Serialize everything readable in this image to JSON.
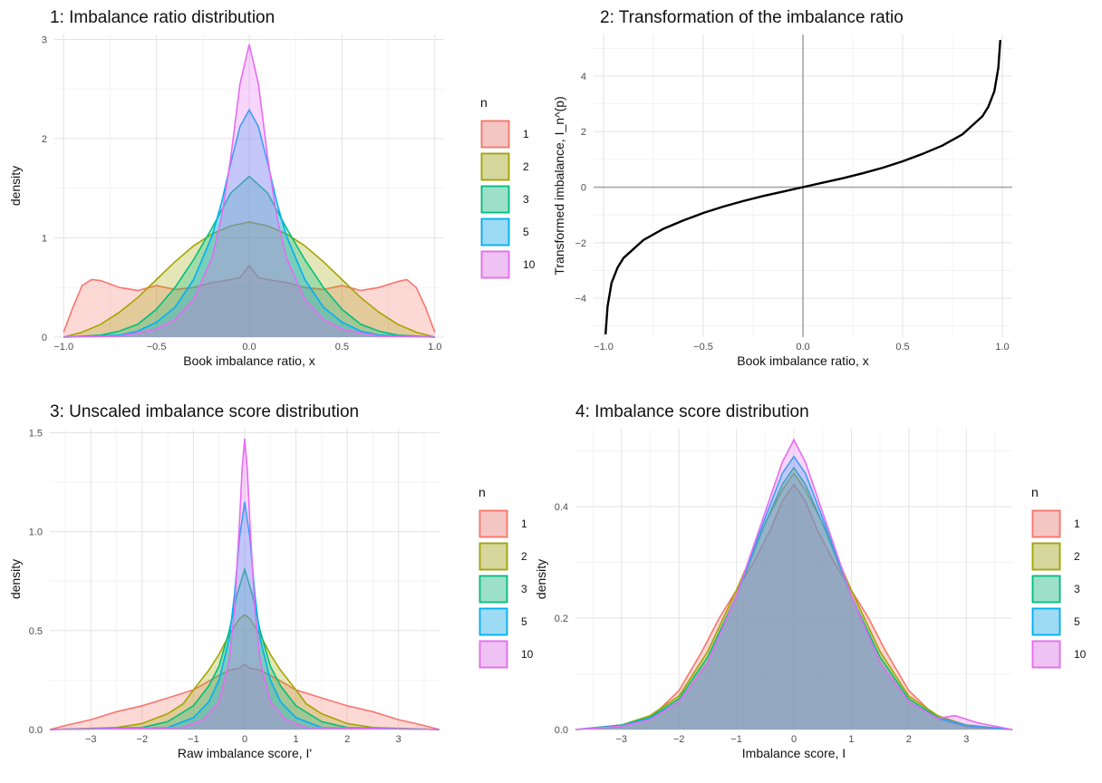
{
  "chart_data": [
    {
      "type": "area",
      "title": "1: Imbalance ratio distribution",
      "xlabel": "Book imbalance ratio, x",
      "ylabel": "density",
      "xlim": [
        -1.05,
        1.05
      ],
      "ylim": [
        0,
        3.05
      ],
      "xticks": [
        -1.0,
        -0.5,
        0.0,
        0.5,
        1.0
      ],
      "xtick_labels": [
        "−1.0",
        "−0.5",
        "0.0",
        "0.5",
        "1.0"
      ],
      "yticks": [
        0,
        1,
        2,
        3
      ],
      "ytick_labels": [
        "0",
        "1",
        "2",
        "3"
      ],
      "grid": true,
      "legend": {
        "title": "n",
        "position": "right",
        "entries": [
          "1",
          "2",
          "3",
          "5",
          "10"
        ]
      },
      "series": [
        {
          "name": "1",
          "color": "#F8766D",
          "x": [
            -1.0,
            -0.95,
            -0.9,
            -0.85,
            -0.8,
            -0.7,
            -0.6,
            -0.5,
            -0.4,
            -0.3,
            -0.2,
            -0.1,
            -0.05,
            0.0,
            0.05,
            0.1,
            0.2,
            0.3,
            0.4,
            0.5,
            0.6,
            0.7,
            0.8,
            0.85,
            0.9,
            0.95,
            1.0
          ],
          "y": [
            0.05,
            0.3,
            0.52,
            0.58,
            0.57,
            0.5,
            0.47,
            0.52,
            0.48,
            0.5,
            0.55,
            0.58,
            0.6,
            0.72,
            0.6,
            0.58,
            0.55,
            0.5,
            0.48,
            0.52,
            0.47,
            0.5,
            0.56,
            0.58,
            0.5,
            0.3,
            0.05
          ]
        },
        {
          "name": "2",
          "color": "#A3A500",
          "x": [
            -1.0,
            -0.9,
            -0.8,
            -0.7,
            -0.6,
            -0.5,
            -0.4,
            -0.3,
            -0.2,
            -0.1,
            0.0,
            0.1,
            0.2,
            0.3,
            0.4,
            0.5,
            0.6,
            0.7,
            0.8,
            0.9,
            1.0
          ],
          "y": [
            0.0,
            0.05,
            0.13,
            0.25,
            0.4,
            0.58,
            0.76,
            0.92,
            1.04,
            1.12,
            1.16,
            1.12,
            1.04,
            0.92,
            0.76,
            0.58,
            0.4,
            0.25,
            0.13,
            0.05,
            0.0
          ]
        },
        {
          "name": "3",
          "color": "#00BF7D",
          "x": [
            -1.0,
            -0.8,
            -0.7,
            -0.6,
            -0.5,
            -0.4,
            -0.3,
            -0.2,
            -0.1,
            0.0,
            0.1,
            0.2,
            0.3,
            0.4,
            0.5,
            0.6,
            0.7,
            0.8,
            1.0
          ],
          "y": [
            0.0,
            0.02,
            0.06,
            0.13,
            0.28,
            0.5,
            0.78,
            1.1,
            1.45,
            1.62,
            1.45,
            1.1,
            0.78,
            0.5,
            0.28,
            0.13,
            0.06,
            0.02,
            0.0
          ]
        },
        {
          "name": "5",
          "color": "#00B0F6",
          "x": [
            -1.0,
            -0.7,
            -0.6,
            -0.5,
            -0.4,
            -0.3,
            -0.2,
            -0.15,
            -0.1,
            -0.05,
            0.0,
            0.05,
            0.1,
            0.15,
            0.2,
            0.3,
            0.4,
            0.5,
            0.6,
            0.7,
            1.0
          ],
          "y": [
            0.0,
            0.02,
            0.06,
            0.15,
            0.3,
            0.58,
            1.02,
            1.35,
            1.75,
            2.12,
            2.29,
            2.12,
            1.75,
            1.35,
            1.02,
            0.58,
            0.3,
            0.15,
            0.06,
            0.02,
            0.0
          ]
        },
        {
          "name": "10",
          "color": "#E76BF3",
          "x": [
            -1.0,
            -0.7,
            -0.5,
            -0.4,
            -0.3,
            -0.2,
            -0.15,
            -0.1,
            -0.05,
            0.0,
            0.05,
            0.1,
            0.15,
            0.2,
            0.3,
            0.4,
            0.5,
            0.7,
            1.0
          ],
          "y": [
            0.0,
            0.01,
            0.08,
            0.18,
            0.38,
            0.8,
            1.2,
            1.8,
            2.55,
            2.95,
            2.55,
            1.8,
            1.2,
            0.8,
            0.38,
            0.18,
            0.08,
            0.01,
            0.0
          ]
        }
      ]
    },
    {
      "type": "line",
      "title": "2: Transformation of the imbalance ratio",
      "xlabel": "Book imbalance ratio, x",
      "ylabel": "Transformed imbalance, I_n^(p)",
      "xlim": [
        -1.05,
        1.05
      ],
      "ylim": [
        -5.4,
        5.5
      ],
      "xticks": [
        -1.0,
        -0.5,
        0.0,
        0.5,
        1.0
      ],
      "xtick_labels": [
        "−1.0",
        "−0.5",
        "0.0",
        "0.5",
        "1.0"
      ],
      "yticks": [
        -4,
        -2,
        0,
        2,
        4
      ],
      "ytick_labels": [
        "−4",
        "−2",
        "0",
        "2",
        "4"
      ],
      "grid": true,
      "reference_lines": {
        "x": 0,
        "y": 0
      },
      "series": [
        {
          "color": "#000000",
          "x": [
            -0.99,
            -0.98,
            -0.96,
            -0.93,
            -0.9,
            -0.8,
            -0.7,
            -0.6,
            -0.5,
            -0.4,
            -0.3,
            -0.2,
            -0.1,
            0.0,
            0.1,
            0.2,
            0.3,
            0.4,
            0.5,
            0.6,
            0.7,
            0.8,
            0.9,
            0.93,
            0.96,
            0.98,
            0.99
          ],
          "y": [
            -5.3,
            -4.3,
            -3.45,
            -2.9,
            -2.55,
            -1.9,
            -1.5,
            -1.2,
            -0.93,
            -0.7,
            -0.5,
            -0.32,
            -0.16,
            0.0,
            0.16,
            0.32,
            0.5,
            0.7,
            0.93,
            1.2,
            1.5,
            1.9,
            2.55,
            2.9,
            3.45,
            4.3,
            5.3
          ]
        }
      ]
    },
    {
      "type": "area",
      "title": "3: Unscaled imbalance score distribution",
      "xlabel": "Raw imbalance score, I'",
      "ylabel": "density",
      "xlim": [
        -3.8,
        3.8
      ],
      "ylim": [
        0,
        1.52
      ],
      "xticks": [
        -3,
        -2,
        -1,
        0,
        1,
        2,
        3
      ],
      "xtick_labels": [
        "−3",
        "−2",
        "−1",
        "0",
        "1",
        "2",
        "3"
      ],
      "yticks": [
        0.0,
        0.5,
        1.0,
        1.5
      ],
      "ytick_labels": [
        "0.0",
        "0.5",
        "1.0",
        "1.5"
      ],
      "grid": true,
      "legend": {
        "title": "n",
        "position": "right",
        "entries": [
          "1",
          "2",
          "3",
          "5",
          "10"
        ]
      },
      "series": [
        {
          "name": "1",
          "color": "#F8766D",
          "x": [
            -3.8,
            -3.5,
            -3.0,
            -2.5,
            -2.0,
            -1.5,
            -1.0,
            -0.6,
            -0.3,
            -0.1,
            0.0,
            0.1,
            0.3,
            0.6,
            1.0,
            1.5,
            2.0,
            2.5,
            3.0,
            3.5,
            3.8
          ],
          "y": [
            0.0,
            0.02,
            0.05,
            0.09,
            0.12,
            0.16,
            0.2,
            0.26,
            0.3,
            0.31,
            0.33,
            0.31,
            0.3,
            0.26,
            0.2,
            0.16,
            0.12,
            0.09,
            0.05,
            0.02,
            0.0
          ]
        },
        {
          "name": "2",
          "color": "#A3A500",
          "x": [
            -3.8,
            -2.5,
            -2.0,
            -1.5,
            -1.2,
            -1.0,
            -0.7,
            -0.5,
            -0.3,
            -0.1,
            0.0,
            0.1,
            0.3,
            0.5,
            0.7,
            1.0,
            1.2,
            1.5,
            2.0,
            2.5,
            3.8
          ],
          "y": [
            0.0,
            0.01,
            0.03,
            0.08,
            0.13,
            0.2,
            0.3,
            0.38,
            0.48,
            0.56,
            0.58,
            0.56,
            0.48,
            0.38,
            0.3,
            0.2,
            0.13,
            0.08,
            0.03,
            0.01,
            0.0
          ]
        },
        {
          "name": "3",
          "color": "#00BF7D",
          "x": [
            -3.8,
            -2.0,
            -1.5,
            -1.0,
            -0.7,
            -0.5,
            -0.3,
            -0.15,
            0.0,
            0.15,
            0.3,
            0.5,
            0.7,
            1.0,
            1.5,
            2.0,
            3.8
          ],
          "y": [
            0.0,
            0.01,
            0.04,
            0.12,
            0.22,
            0.32,
            0.5,
            0.68,
            0.81,
            0.68,
            0.5,
            0.32,
            0.22,
            0.12,
            0.04,
            0.01,
            0.0
          ]
        },
        {
          "name": "5",
          "color": "#00B0F6",
          "x": [
            -3.8,
            -1.5,
            -1.0,
            -0.7,
            -0.5,
            -0.3,
            -0.2,
            -0.1,
            0.0,
            0.1,
            0.2,
            0.3,
            0.5,
            0.7,
            1.0,
            1.5,
            3.8
          ],
          "y": [
            0.0,
            0.01,
            0.06,
            0.14,
            0.25,
            0.46,
            0.68,
            0.97,
            1.15,
            0.97,
            0.68,
            0.46,
            0.25,
            0.14,
            0.06,
            0.01,
            0.0
          ]
        },
        {
          "name": "10",
          "color": "#E76BF3",
          "x": [
            -3.8,
            -1.2,
            -0.8,
            -0.5,
            -0.3,
            -0.2,
            -0.1,
            -0.05,
            0.0,
            0.05,
            0.1,
            0.2,
            0.3,
            0.5,
            0.8,
            1.2,
            3.8
          ],
          "y": [
            0.0,
            0.01,
            0.05,
            0.14,
            0.35,
            0.6,
            1.05,
            1.32,
            1.47,
            1.32,
            1.05,
            0.6,
            0.35,
            0.14,
            0.05,
            0.01,
            0.0
          ]
        }
      ]
    },
    {
      "type": "area",
      "title": "4: Imbalance score distribution",
      "xlabel": "Imbalance score, I",
      "ylabel": "density",
      "xlim": [
        -3.8,
        3.8
      ],
      "ylim": [
        0,
        0.54
      ],
      "xticks": [
        -3,
        -2,
        -1,
        0,
        1,
        2,
        3
      ],
      "xtick_labels": [
        "−3",
        "−2",
        "−1",
        "0",
        "1",
        "2",
        "3"
      ],
      "yticks": [
        0.0,
        0.2,
        0.4
      ],
      "ytick_labels": [
        "0.0",
        "0.2",
        "0.4"
      ],
      "grid": true,
      "legend": {
        "title": "n",
        "position": "right",
        "entries": [
          "1",
          "2",
          "3",
          "5",
          "10"
        ]
      },
      "series": [
        {
          "name": "1",
          "color": "#F8766D",
          "x": [
            -3.8,
            -3.0,
            -2.5,
            -2.0,
            -1.6,
            -1.3,
            -1.0,
            -0.7,
            -0.4,
            -0.2,
            0.0,
            0.2,
            0.4,
            0.7,
            1.0,
            1.3,
            1.6,
            2.0,
            2.5,
            3.0,
            3.8
          ],
          "y": [
            0.0,
            0.005,
            0.02,
            0.07,
            0.14,
            0.2,
            0.25,
            0.3,
            0.36,
            0.41,
            0.44,
            0.41,
            0.36,
            0.3,
            0.25,
            0.2,
            0.14,
            0.07,
            0.02,
            0.005,
            0.0
          ]
        },
        {
          "name": "2",
          "color": "#A3A500",
          "x": [
            -3.8,
            -3.0,
            -2.5,
            -2.0,
            -1.5,
            -1.0,
            -0.5,
            -0.2,
            0.0,
            0.2,
            0.5,
            1.0,
            1.5,
            2.0,
            2.5,
            3.0,
            3.8
          ],
          "y": [
            0.0,
            0.008,
            0.025,
            0.06,
            0.14,
            0.25,
            0.37,
            0.43,
            0.46,
            0.43,
            0.37,
            0.25,
            0.14,
            0.06,
            0.025,
            0.008,
            0.0
          ]
        },
        {
          "name": "3",
          "color": "#00BF7D",
          "x": [
            -3.8,
            -3.0,
            -2.5,
            -2.0,
            -1.5,
            -1.0,
            -0.5,
            -0.2,
            0.0,
            0.2,
            0.5,
            1.0,
            1.5,
            2.0,
            2.5,
            3.0,
            3.8
          ],
          "y": [
            0.0,
            0.008,
            0.022,
            0.055,
            0.13,
            0.24,
            0.37,
            0.44,
            0.47,
            0.44,
            0.37,
            0.24,
            0.13,
            0.055,
            0.022,
            0.008,
            0.0
          ]
        },
        {
          "name": "5",
          "color": "#00B0F6",
          "x": [
            -3.8,
            -3.0,
            -2.5,
            -2.0,
            -1.5,
            -1.0,
            -0.5,
            -0.2,
            0.0,
            0.2,
            0.5,
            1.0,
            1.5,
            2.0,
            2.5,
            3.0,
            3.8
          ],
          "y": [
            0.0,
            0.007,
            0.02,
            0.05,
            0.12,
            0.24,
            0.38,
            0.46,
            0.49,
            0.46,
            0.38,
            0.24,
            0.12,
            0.05,
            0.02,
            0.007,
            0.0
          ]
        },
        {
          "name": "10",
          "color": "#E76BF3",
          "x": [
            -3.8,
            -3.0,
            -2.5,
            -2.0,
            -1.5,
            -1.0,
            -0.5,
            -0.2,
            0.0,
            0.2,
            0.5,
            1.0,
            1.5,
            2.0,
            2.5,
            2.8,
            3.2,
            3.8
          ],
          "y": [
            0.0,
            0.006,
            0.018,
            0.05,
            0.12,
            0.24,
            0.39,
            0.48,
            0.52,
            0.48,
            0.39,
            0.24,
            0.12,
            0.05,
            0.02,
            0.025,
            0.012,
            0.0
          ]
        }
      ]
    }
  ]
}
